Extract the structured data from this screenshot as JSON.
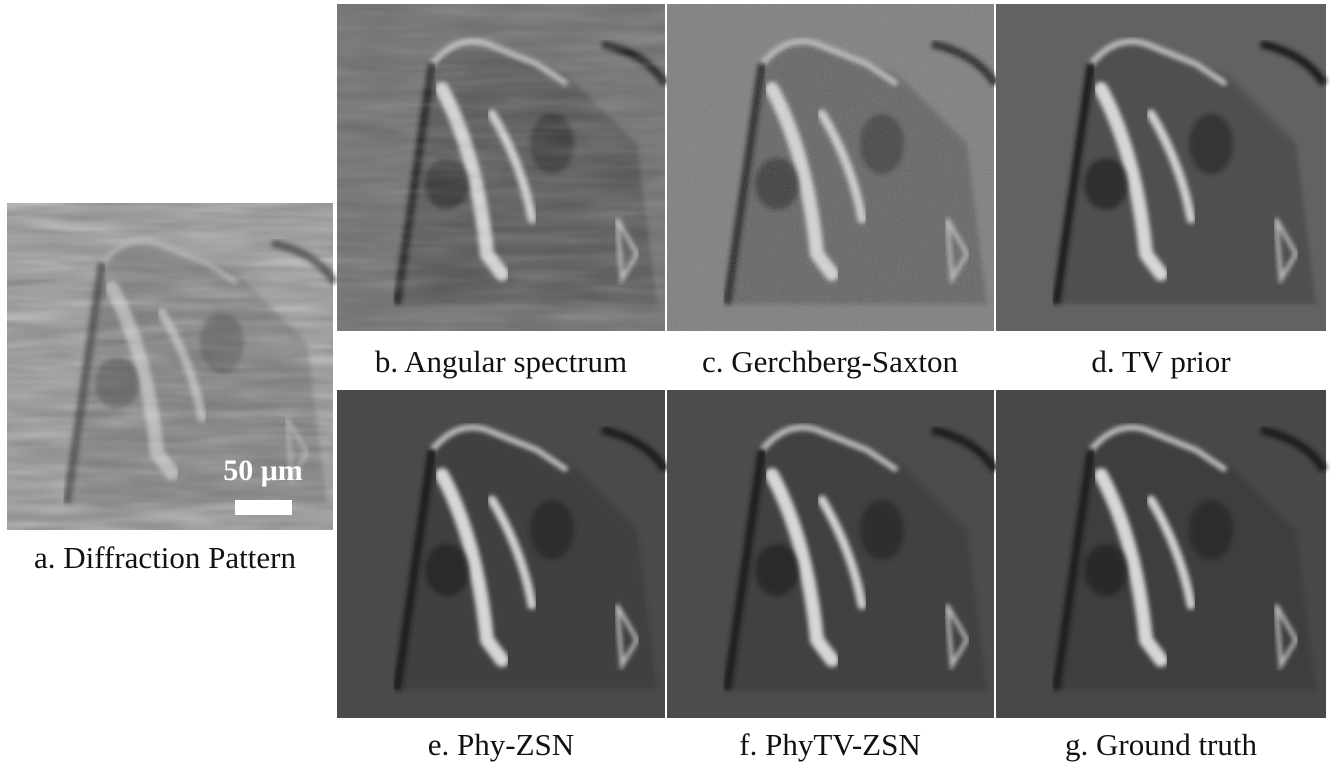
{
  "panels": [
    {
      "label": "a. Diffraction Pattern"
    },
    {
      "label": "b. Angular spectrum"
    },
    {
      "label": "c. Gerchberg-Saxton"
    },
    {
      "label": "d. TV prior"
    },
    {
      "label": "e. Phy-ZSN"
    },
    {
      "label": "f. PhyTV-ZSN"
    },
    {
      "label": "g. Ground truth"
    }
  ],
  "scale_bar": "50 μm"
}
